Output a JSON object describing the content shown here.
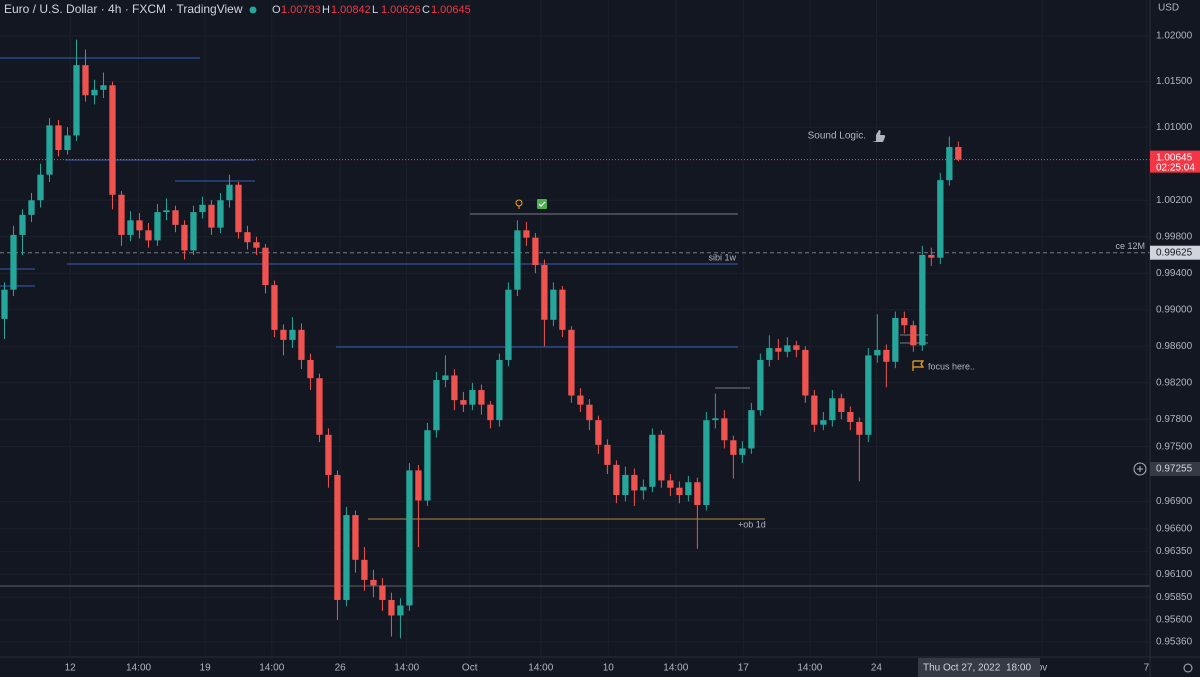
{
  "header": {
    "title": "Euro / U.S. Dollar · 4h · FXCM · TradingView",
    "ohlc": [
      {
        "key": "O",
        "value": 1.00783
      },
      {
        "key": "H",
        "value": 1.00842
      },
      {
        "key": "L",
        "value": 1.00626
      },
      {
        "key": "C",
        "value": 1.00645
      }
    ],
    "currency": "USD"
  },
  "chart_data": {
    "type": "candlestick",
    "open": [
      0.989,
      0.9922,
      0.9982,
      1.0004,
      1.002,
      1.0048,
      1.0102,
      1.0075,
      1.0091,
      1.0168,
      1.0135,
      1.0141,
      1.0146,
      1.0026,
      0.9982,
      0.9998,
      0.9987,
      0.9976,
      1.0007,
      1.0009,
      0.9993,
      0.9965,
      1.0007,
      1.0015,
      0.999,
      1.002,
      1.0037,
      0.9985,
      0.9974,
      0.9968,
      0.9927,
      0.9878,
      0.9867,
      0.9878,
      0.9845,
      0.9825,
      0.9763,
      0.9719,
      0.9582,
      0.9675,
      0.9626,
      0.9604,
      0.9598,
      0.9582,
      0.9565,
      0.9576,
      0.9724,
      0.9691,
      0.9768,
      0.9823,
      0.9828,
      0.9801,
      0.9796,
      0.9812,
      0.9796,
      0.9779,
      0.9845,
      0.9922,
      0.9987,
      0.9979,
      0.9949,
      0.9889,
      0.9922,
      0.9878,
      0.9806,
      0.9796,
      0.9779,
      0.9752,
      0.973,
      0.9697,
      0.9719,
      0.9702,
      0.9706,
      0.9763,
      0.9713,
      0.9705,
      0.9697,
      0.9711,
      0.9686,
      0.9779,
      0.9781,
      0.9757,
      0.9741,
      0.9748,
      0.979,
      0.9845,
      0.9858,
      0.9854,
      0.9861,
      0.9856,
      0.9806,
      0.9774,
      0.9779,
      0.9803,
      0.9788,
      0.9777,
      0.9763,
      0.985,
      0.9856,
      0.9843,
      0.9891,
      0.9883,
      0.9861,
      0.996,
      0.9957,
      1.0042,
      1.00783
    ],
    "high": [
      0.993,
      0.9992,
      1.001,
      1.0028,
      1.006,
      1.011,
      1.0108,
      1.01,
      1.0196,
      1.0185,
      1.0152,
      1.016,
      1.015,
      1.003,
      1.0008,
      1.0006,
      0.9995,
      1.0016,
      1.0022,
      1.0014,
      0.9998,
      1.0014,
      1.0024,
      1.002,
      1.0028,
      1.0048,
      1.004,
      0.9992,
      0.998,
      0.9972,
      0.9932,
      0.9884,
      0.9892,
      0.9885,
      0.9852,
      0.983,
      0.977,
      0.9724,
      0.9684,
      0.968,
      0.964,
      0.9615,
      0.9606,
      0.959,
      0.9584,
      0.9732,
      0.973,
      0.9776,
      0.9832,
      0.985,
      0.9835,
      0.981,
      0.982,
      0.9818,
      0.98,
      0.9852,
      0.993,
      0.9998,
      0.9996,
      0.9984,
      0.9955,
      0.993,
      0.9926,
      0.9882,
      0.9814,
      0.9802,
      0.9784,
      0.9758,
      0.9735,
      0.9728,
      0.9726,
      0.9714,
      0.977,
      0.9768,
      0.972,
      0.9712,
      0.9718,
      0.9716,
      0.9788,
      0.9808,
      0.979,
      0.9762,
      0.9756,
      0.9798,
      0.9852,
      0.9872,
      0.9868,
      0.987,
      0.9866,
      0.986,
      0.9812,
      0.9788,
      0.9812,
      0.9808,
      0.9794,
      0.9782,
      0.9858,
      0.9895,
      0.9862,
      0.9898,
      0.9898,
      0.9888,
      0.997,
      0.9968,
      1.005,
      1.009,
      1.00842
    ],
    "low": [
      0.9868,
      0.9915,
      0.996,
      0.9996,
      1.0012,
      1.004,
      1.0068,
      1.007,
      1.0085,
      1.0128,
      1.0125,
      1.0132,
      1.001,
      0.997,
      0.9975,
      0.9978,
      0.9968,
      0.997,
      0.9998,
      0.9985,
      0.9955,
      0.996,
      1.0,
      0.9982,
      0.9984,
      1.0012,
      0.9978,
      0.9966,
      0.996,
      0.9918,
      0.987,
      0.985,
      0.9858,
      0.9835,
      0.9812,
      0.9755,
      0.9705,
      0.956,
      0.9575,
      0.9612,
      0.9592,
      0.9585,
      0.957,
      0.9542,
      0.954,
      0.957,
      0.964,
      0.9685,
      0.976,
      0.9815,
      0.979,
      0.9788,
      0.979,
      0.9785,
      0.977,
      0.9772,
      0.9838,
      0.9915,
      0.997,
      0.994,
      0.986,
      0.9882,
      0.987,
      0.9798,
      0.9788,
      0.9768,
      0.9742,
      0.972,
      0.9688,
      0.969,
      0.9685,
      0.9692,
      0.97,
      0.9705,
      0.9696,
      0.9688,
      0.969,
      0.9638,
      0.968,
      0.977,
      0.9748,
      0.9715,
      0.9732,
      0.9742,
      0.9784,
      0.9838,
      0.9845,
      0.9848,
      0.9848,
      0.9798,
      0.9766,
      0.9768,
      0.9772,
      0.978,
      0.9768,
      0.9712,
      0.9755,
      0.9842,
      0.9815,
      0.9836,
      0.9874,
      0.9854,
      0.9855,
      0.9948,
      0.995,
      1.0036,
      1.00626
    ],
    "close": [
      0.9922,
      0.9982,
      1.0004,
      1.002,
      1.0048,
      1.0102,
      1.0075,
      1.0091,
      1.0168,
      1.0135,
      1.0141,
      1.0146,
      1.0026,
      0.9982,
      0.9998,
      0.9987,
      0.9976,
      1.0007,
      1.0009,
      0.9993,
      0.9965,
      1.0007,
      1.0015,
      0.999,
      1.002,
      1.0037,
      0.9985,
      0.9974,
      0.9968,
      0.9927,
      0.9878,
      0.9867,
      0.9878,
      0.9845,
      0.9825,
      0.9763,
      0.9719,
      0.9582,
      0.9675,
      0.9626,
      0.9604,
      0.9598,
      0.9582,
      0.9565,
      0.9576,
      0.9724,
      0.9691,
      0.9768,
      0.9823,
      0.9828,
      0.9801,
      0.9796,
      0.9812,
      0.9796,
      0.9779,
      0.9845,
      0.9922,
      0.9987,
      0.9979,
      0.9949,
      0.9889,
      0.9922,
      0.9878,
      0.9806,
      0.9796,
      0.9779,
      0.9752,
      0.973,
      0.9697,
      0.9719,
      0.9702,
      0.9706,
      0.9763,
      0.9713,
      0.9705,
      0.9697,
      0.9711,
      0.9686,
      0.9779,
      0.9781,
      0.9757,
      0.9741,
      0.9748,
      0.979,
      0.9845,
      0.9858,
      0.9854,
      0.9861,
      0.9856,
      0.9806,
      0.9774,
      0.9779,
      0.9803,
      0.9788,
      0.9777,
      0.9763,
      0.985,
      0.9856,
      0.9843,
      0.9891,
      0.9883,
      0.9861,
      0.996,
      0.9957,
      1.0042,
      1.00783,
      1.00645
    ],
    "up_color": "#26a69a",
    "down_color": "#ef5350",
    "xlim": [
      -0.5,
      127.3
    ],
    "xticks": [
      {
        "value": 7.3,
        "label": "12"
      },
      {
        "value": 14.9,
        "label": "14:00"
      },
      {
        "value": 22.3,
        "label": "19"
      },
      {
        "value": 29.7,
        "label": "14:00"
      },
      {
        "value": 37.3,
        "label": "26"
      },
      {
        "value": 44.7,
        "label": "14:00"
      },
      {
        "value": 51.7,
        "label": "Oct"
      },
      {
        "value": 59.6,
        "label": "14:00"
      },
      {
        "value": 67.1,
        "label": "10"
      },
      {
        "value": 74.6,
        "label": "14:00"
      },
      {
        "value": 82.1,
        "label": "17"
      },
      {
        "value": 89.5,
        "label": "14:00"
      },
      {
        "value": 96.9,
        "label": "24"
      },
      {
        "value": 115.3,
        "label": "ov"
      },
      {
        "value": 126.9,
        "label": "7"
      }
    ],
    "ylim": [
      0.95217,
      1.02394
    ],
    "yticks": [
      {
        "value": 1.02,
        "label": "1.02000"
      },
      {
        "value": 1.015,
        "label": "1.01500"
      },
      {
        "value": 1.01,
        "label": "1.01000"
      },
      {
        "value": 1.002,
        "label": "1.00200"
      },
      {
        "value": 0.998,
        "label": "0.99800"
      },
      {
        "value": 0.994,
        "label": "0.99400"
      },
      {
        "value": 0.99,
        "label": "0.99000"
      },
      {
        "value": 0.986,
        "label": "0.98600"
      },
      {
        "value": 0.982,
        "label": "0.98200"
      },
      {
        "value": 0.978,
        "label": "0.97800"
      },
      {
        "value": 0.975,
        "label": "0.97500"
      },
      {
        "value": 0.969,
        "label": "0.96900"
      },
      {
        "value": 0.966,
        "label": "0.96600"
      },
      {
        "value": 0.9635,
        "label": "0.96350"
      },
      {
        "value": 0.961,
        "label": "0.96100"
      },
      {
        "value": 0.9585,
        "label": "0.95850"
      },
      {
        "value": 0.956,
        "label": "0.95600"
      },
      {
        "value": 0.9536,
        "label": "0.95360"
      }
    ],
    "grid": true,
    "last_price": {
      "value": 1.00645,
      "countdown": "02:25:04"
    },
    "level": {
      "value": 0.99625,
      "name": "ce 12M"
    },
    "crosshair": {
      "value": 0.97255,
      "date": "Thu Oct 27, 2022",
      "time": "18:00"
    },
    "annotations": [
      "sibi 1w",
      "+ob 1d",
      "Sound Logic.",
      "focus here.."
    ]
  }
}
